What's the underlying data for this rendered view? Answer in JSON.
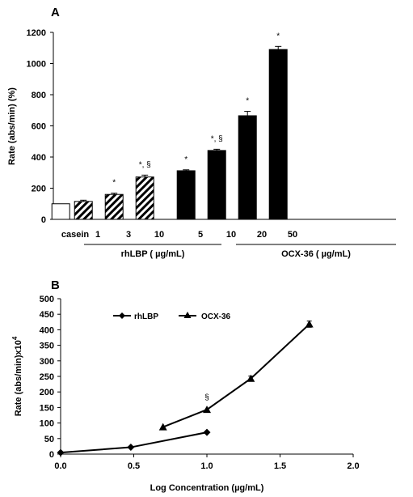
{
  "chart_data": [
    {
      "panel_label": "A",
      "type": "bar",
      "ylabel": "Rate (abs/min) (%)",
      "ylim": [
        0,
        1200
      ],
      "yticks": [
        "0",
        "200",
        "400",
        "600",
        "800",
        "1000",
        "1200"
      ],
      "categories": [
        "casein",
        "1",
        "3",
        "10",
        "5",
        "10",
        "20",
        "50"
      ],
      "values": [
        100,
        115,
        160,
        272,
        312,
        442,
        665,
        1090
      ],
      "errors": [
        0,
        8,
        8,
        12,
        6,
        8,
        28,
        20
      ],
      "fills": [
        "white",
        "hatched",
        "hatched",
        "hatched",
        "black",
        "black",
        "black",
        "black"
      ],
      "annotations": [
        "",
        "",
        "*",
        "*, §",
        "*",
        "*, §",
        "*",
        "*"
      ],
      "groups": [
        {
          "label": "rhLBP ( µg/mL)",
          "first": 1,
          "last": 3
        },
        {
          "label": "OCX-36 ( µg/mL)",
          "first": 4,
          "last": 7
        }
      ],
      "grid": false
    },
    {
      "panel_label": "B",
      "type": "line",
      "xlabel": "Log Concentration (µg/mL)",
      "ylabel": "Rate (abs/min)x10",
      "ylabel_sup": "4",
      "xlim": [
        0.0,
        2.0
      ],
      "ylim": [
        0,
        500
      ],
      "xticks": [
        "0.0",
        "0.5",
        "1.0",
        "1.5",
        "2.0"
      ],
      "yticks": [
        "0",
        "50",
        "100",
        "150",
        "200",
        "250",
        "300",
        "350",
        "400",
        "450",
        "500"
      ],
      "legend_position": "top-left",
      "series": [
        {
          "name": "rhLBP",
          "marker": "diamond",
          "x": [
            0.0,
            0.48,
            1.0
          ],
          "y": [
            5,
            22,
            70
          ],
          "err": [
            0,
            0,
            0
          ]
        },
        {
          "name": "OCX-36",
          "marker": "triangle",
          "x": [
            0.7,
            1.0,
            1.3,
            1.7
          ],
          "y": [
            87,
            143,
            243,
            418
          ],
          "err": [
            0,
            0,
            8,
            10
          ]
        }
      ],
      "annotations": [
        {
          "text": "§",
          "x": 1.0,
          "y": 143
        }
      ],
      "grid": false
    }
  ]
}
